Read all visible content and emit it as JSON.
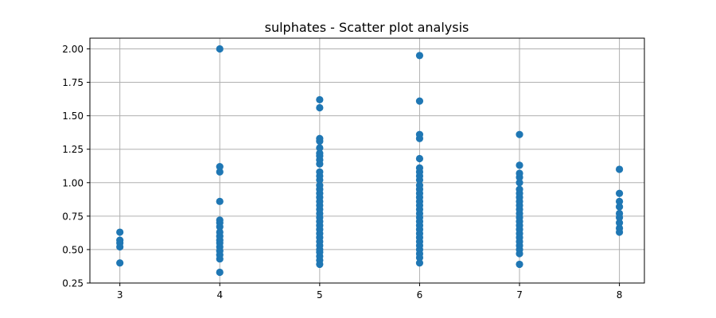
{
  "chart_data": {
    "type": "scatter",
    "title": "sulphates - Scatter plot analysis",
    "xlabel": "",
    "ylabel": "",
    "xlim": [
      2.7,
      8.25
    ],
    "ylim": [
      0.25,
      2.08
    ],
    "xticks": [
      3,
      4,
      5,
      6,
      7,
      8
    ],
    "xtick_labels": [
      "3",
      "4",
      "5",
      "6",
      "7",
      "8"
    ],
    "yticks": [
      0.25,
      0.5,
      0.75,
      1.0,
      1.25,
      1.5,
      1.75,
      2.0
    ],
    "ytick_labels": [
      "0.25",
      "0.50",
      "0.75",
      "1.00",
      "1.25",
      "1.50",
      "1.75",
      "2.00"
    ],
    "grid": true,
    "marker_color": "#1f77b4",
    "points": {
      "3": [
        0.4,
        0.52,
        0.55,
        0.57,
        0.63
      ],
      "4": [
        0.33,
        0.43,
        0.46,
        0.49,
        0.52,
        0.55,
        0.57,
        0.6,
        0.63,
        0.67,
        0.7,
        0.72,
        0.86,
        1.08,
        1.12,
        2.0
      ],
      "5": [
        0.39,
        0.42,
        0.45,
        0.48,
        0.5,
        0.53,
        0.56,
        0.59,
        0.62,
        0.65,
        0.68,
        0.71,
        0.74,
        0.77,
        0.8,
        0.83,
        0.86,
        0.89,
        0.92,
        0.95,
        0.98,
        1.02,
        1.05,
        1.08,
        1.14,
        1.17,
        1.2,
        1.22,
        1.26,
        1.31,
        1.33,
        1.56,
        1.62
      ],
      "6": [
        0.4,
        0.44,
        0.47,
        0.5,
        0.53,
        0.56,
        0.59,
        0.62,
        0.65,
        0.68,
        0.71,
        0.74,
        0.77,
        0.8,
        0.83,
        0.86,
        0.89,
        0.92,
        0.95,
        0.98,
        1.02,
        1.05,
        1.08,
        1.11,
        1.18,
        1.33,
        1.36,
        1.61,
        1.95
      ],
      "7": [
        0.39,
        0.47,
        0.5,
        0.53,
        0.56,
        0.59,
        0.62,
        0.65,
        0.68,
        0.71,
        0.74,
        0.77,
        0.8,
        0.83,
        0.86,
        0.89,
        0.92,
        0.95,
        1.0,
        1.04,
        1.07,
        1.13,
        1.36
      ],
      "8": [
        0.63,
        0.66,
        0.7,
        0.74,
        0.77,
        0.82,
        0.86,
        0.92,
        1.1
      ]
    }
  }
}
